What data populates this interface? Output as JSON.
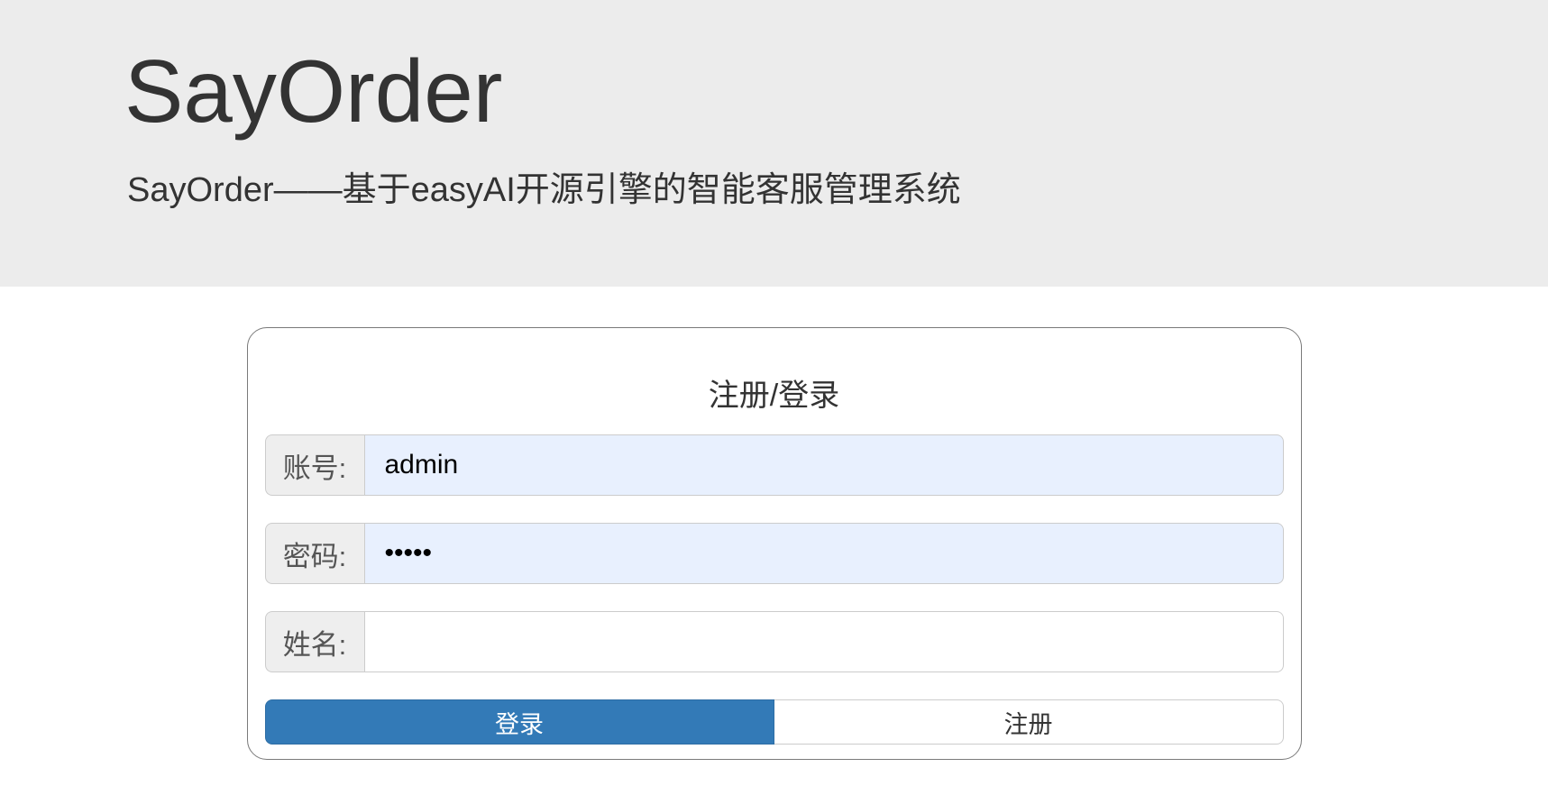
{
  "header": {
    "title": "SayOrder",
    "subtitle": "SayOrder——基于easyAI开源引擎的智能客服管理系统"
  },
  "card": {
    "title": "注册/登录",
    "fields": [
      {
        "label": "账号:",
        "value": "admin",
        "autofilled": true
      },
      {
        "label": "密码:",
        "value": "•••••",
        "autofilled": true
      },
      {
        "label": "姓名:",
        "value": "",
        "autofilled": false
      }
    ],
    "buttons": {
      "login": "登录",
      "register": "注册"
    }
  },
  "colors": {
    "primary_blue": "#337ab7",
    "primary_blue_border": "#2e6da4",
    "autofill_background": "#e8f0fe",
    "header_background": "#ececec",
    "addon_background": "#eeeeee",
    "input_border": "#cccccc",
    "card_border": "#7a7a7a",
    "text": "#333333"
  }
}
